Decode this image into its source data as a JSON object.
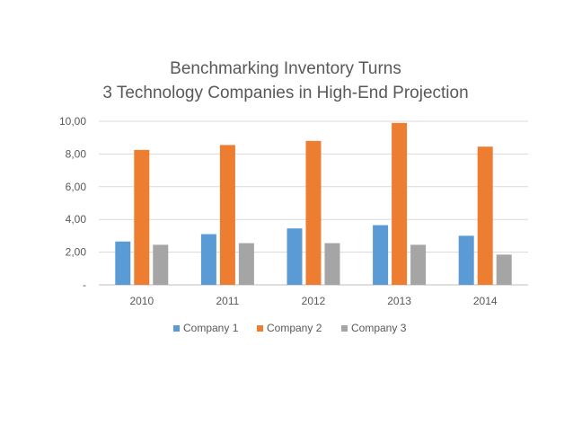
{
  "chart_data": {
    "type": "bar",
    "title": "Benchmarking Inventory Turns",
    "subtitle": "3 Technology Companies in High-End Projection",
    "xlabel": "",
    "ylabel": "",
    "categories": [
      "2010",
      "2011",
      "2012",
      "2013",
      "2014"
    ],
    "ylim": [
      0,
      10
    ],
    "yticks": [
      "-",
      "2,00",
      "4,00",
      "6,00",
      "8,00",
      "10,00"
    ],
    "grid": true,
    "legend_position": "bottom",
    "series": [
      {
        "name": "Company 1",
        "color": "#5b9bd5",
        "values": [
          2.65,
          3.1,
          3.45,
          3.65,
          3.0
        ]
      },
      {
        "name": "Company 2",
        "color": "#ed7d31",
        "values": [
          8.25,
          8.55,
          8.8,
          9.9,
          8.45
        ]
      },
      {
        "name": "Company 3",
        "color": "#a5a5a5",
        "values": [
          2.45,
          2.55,
          2.55,
          2.45,
          1.85
        ]
      }
    ]
  }
}
